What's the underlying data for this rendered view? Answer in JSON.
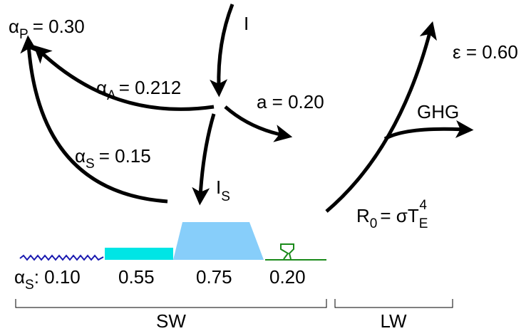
{
  "labels": {
    "alpha_p": {
      "symbol": "α",
      "sub": "P",
      "text": "= 0.30"
    },
    "incident": "I",
    "alpha_a": {
      "symbol": "α",
      "sub": "A",
      "text": "= 0.212"
    },
    "albedo_a": "a = 0.20",
    "alpha_s": {
      "symbol": "α",
      "sub": "S",
      "text": "= 0.15"
    },
    "i_s": {
      "symbol": "I",
      "sub": "S"
    },
    "epsilon": "ε = 0.60",
    "ghg": "GHG",
    "r0": {
      "symbol": "R",
      "sub": "0",
      "text": "= σT",
      "sub2": "E",
      "sup": "4"
    }
  },
  "surface": {
    "symbol": "α",
    "sub": "S",
    "first": ": 0.10",
    "values": [
      "0.55",
      "0.75",
      "0.20"
    ]
  },
  "bands": [
    "SW",
    "LW"
  ]
}
